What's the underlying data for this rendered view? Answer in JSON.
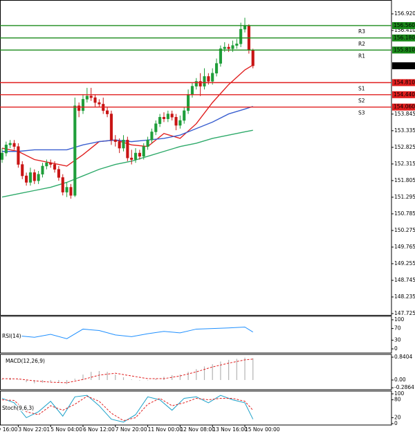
{
  "chart_data": {
    "type": "candlestick",
    "candles": {
      "open": [
        152.45,
        152.65,
        152.9,
        152.95,
        152.85,
        152.3,
        151.95,
        151.75,
        152.05,
        151.8,
        152.0,
        152.25,
        152.35,
        152.3,
        152.15,
        151.9,
        151.45,
        151.6,
        151.35,
        154.1,
        153.95,
        154.3,
        154.4,
        154.35,
        154.2,
        154.15,
        153.95,
        153.85,
        153.05,
        153.0,
        152.8,
        153.05,
        152.5,
        152.45,
        152.65,
        152.55,
        152.85,
        153.05,
        153.3,
        153.55,
        153.75,
        153.7,
        153.85,
        153.75,
        153.5,
        153.65,
        153.95,
        154.45,
        154.7,
        154.85,
        154.7,
        155.0,
        154.85,
        155.1,
        155.4,
        155.85,
        155.9,
        155.85,
        155.95,
        156.0,
        156.45,
        156.55,
        155.8
      ],
      "high": [
        152.8,
        153.0,
        153.05,
        153.05,
        152.95,
        152.4,
        152.05,
        152.2,
        152.15,
        152.1,
        152.35,
        152.45,
        152.45,
        152.4,
        152.25,
        152.0,
        151.75,
        151.7,
        154.35,
        154.2,
        154.45,
        154.65,
        154.65,
        154.45,
        154.3,
        154.35,
        154.05,
        153.95,
        153.2,
        153.1,
        153.2,
        153.15,
        152.75,
        152.8,
        152.75,
        152.95,
        153.15,
        153.4,
        153.65,
        153.85,
        153.9,
        153.95,
        153.95,
        153.85,
        153.8,
        154.05,
        154.6,
        154.8,
        154.95,
        155.1,
        155.25,
        155.1,
        155.25,
        155.55,
        155.95,
        156.05,
        156.0,
        156.1,
        156.15,
        156.65,
        156.8,
        156.6,
        155.85
      ],
      "low": [
        152.35,
        152.55,
        152.8,
        152.75,
        152.2,
        151.85,
        151.65,
        151.65,
        151.7,
        151.7,
        151.9,
        152.15,
        152.2,
        152.05,
        151.8,
        151.35,
        151.3,
        151.25,
        151.3,
        153.75,
        153.85,
        154.2,
        154.25,
        154.05,
        154.05,
        153.85,
        153.75,
        152.9,
        152.85,
        152.65,
        152.7,
        152.4,
        152.3,
        152.35,
        152.45,
        152.45,
        152.75,
        152.95,
        153.2,
        153.45,
        153.6,
        153.6,
        153.65,
        153.35,
        153.4,
        153.55,
        153.85,
        154.35,
        154.6,
        154.4,
        154.6,
        154.75,
        154.75,
        155.0,
        155.3,
        155.75,
        155.75,
        155.75,
        155.85,
        155.9,
        156.35,
        155.7,
        155.25
      ],
      "close": [
        152.65,
        152.9,
        152.95,
        152.85,
        152.3,
        151.95,
        151.75,
        152.05,
        151.8,
        152.0,
        152.25,
        152.35,
        152.3,
        152.15,
        151.9,
        151.45,
        151.6,
        151.35,
        154.1,
        153.95,
        154.3,
        154.4,
        154.35,
        154.2,
        154.15,
        153.95,
        153.85,
        153.05,
        153.0,
        152.8,
        153.05,
        152.5,
        152.45,
        152.65,
        152.55,
        152.85,
        153.05,
        153.3,
        153.55,
        153.75,
        153.7,
        153.85,
        153.75,
        153.5,
        153.65,
        153.95,
        154.45,
        154.7,
        154.85,
        154.7,
        155.0,
        154.85,
        155.1,
        155.4,
        155.85,
        155.9,
        155.85,
        155.95,
        156.0,
        156.45,
        156.55,
        155.8,
        155.327
      ]
    },
    "up_color": "#1f9e3a",
    "down_color": "#c81414",
    "ylim": [
      147.683,
      157.345
    ],
    "yticks": [
      {
        "value": 156.92,
        "label": "156.920"
      },
      {
        "value": 156.41,
        "label": "156.410"
      },
      153.845,
      153.335,
      152.825,
      152.315,
      151.805,
      151.295,
      150.785,
      150.275,
      149.765,
      149.255,
      148.745,
      148.235,
      147.725
    ],
    "xticks": [
      {
        "value": -4,
        "label": "2 Nov 16:00"
      },
      {
        "value": 4,
        "label": "3 Nov 22:01"
      },
      {
        "value": 12,
        "label": "5 Nov 04:00"
      },
      {
        "value": 20,
        "label": "6 Nov 12:00"
      },
      {
        "value": 28,
        "label": "7 Nov 20:00"
      },
      {
        "value": 36,
        "label": "11 Nov 00:00"
      },
      {
        "value": 44,
        "label": "12 Nov 08:00"
      },
      {
        "value": 52,
        "label": "13 Nov 16:00"
      },
      {
        "value": 60,
        "label": "15 Nov 00:00"
      }
    ],
    "moving_averages": [
      {
        "color": "#e01e1e",
        "x": [
          0,
          4,
          8,
          12,
          16,
          20,
          24,
          28,
          32,
          36,
          40,
          44,
          48,
          52,
          56,
          60,
          62
        ],
        "values": [
          152.8,
          152.7,
          152.45,
          152.35,
          152.25,
          152.6,
          153.0,
          153.05,
          152.9,
          152.85,
          153.25,
          153.1,
          153.55,
          154.2,
          154.75,
          155.2,
          155.35
        ]
      },
      {
        "color": "#3a5fd0",
        "x": [
          0,
          4,
          8,
          12,
          16,
          20,
          24,
          28,
          32,
          36,
          40,
          44,
          48,
          52,
          56,
          60,
          62
        ],
        "values": [
          152.7,
          152.7,
          152.75,
          152.75,
          152.75,
          152.9,
          153.0,
          153.05,
          153.0,
          153.05,
          153.1,
          153.2,
          153.4,
          153.6,
          153.85,
          154.0,
          154.08
        ]
      },
      {
        "color": "#2eaa6a",
        "x": [
          0,
          4,
          8,
          12,
          16,
          20,
          24,
          28,
          32,
          36,
          40,
          44,
          48,
          52,
          56,
          60,
          62
        ],
        "values": [
          151.3,
          151.4,
          151.5,
          151.6,
          151.75,
          151.95,
          152.15,
          152.3,
          152.4,
          152.55,
          152.7,
          152.85,
          152.95,
          153.1,
          153.2,
          153.3,
          153.35
        ]
      }
    ],
    "levels": [
      {
        "name": "R3",
        "value": 156.56,
        "value_label": "156.560",
        "color": "#1a8a1a"
      },
      {
        "name": "R2",
        "value": 156.18,
        "value_label": "156.180",
        "color": "#1a8a1a"
      },
      {
        "name": "R1",
        "value": 155.81,
        "value_label": "155.810",
        "color": "#1a8a1a"
      },
      {
        "name": "S1",
        "value": 154.81,
        "value_label": "154.810",
        "color": "#e01e1e"
      },
      {
        "name": "S2",
        "value": 154.44,
        "value_label": "154.440",
        "color": "#e01e1e"
      },
      {
        "name": "S3",
        "value": 154.06,
        "value_label": "154.060",
        "color": "#e01e1e"
      }
    ],
    "last_price": {
      "value": 155.327,
      "label": "155.327"
    },
    "indicators": [
      {
        "title": "RSI(14)",
        "ylim": [
          0,
          100
        ],
        "yticks": [
          100,
          70,
          30,
          0
        ],
        "series": [
          {
            "style": "line",
            "color": "#1e8fff",
            "x": [
              0,
              4,
              8,
              12,
              16,
              20,
              24,
              28,
              32,
              36,
              40,
              44,
              48,
              52,
              56,
              60,
              62
            ],
            "values": [
              55,
              45,
              40,
              50,
              35,
              68,
              63,
              48,
              42,
              52,
              60,
              55,
              68,
              70,
              72,
              75,
              58
            ]
          }
        ]
      },
      {
        "title": "MACD(12,26,9)",
        "ylim": [
          -0.331,
          0.891
        ],
        "yticks": [
          0.8404,
          {
            "value": 0,
            "label": "0.00"
          },
          -0.2864
        ],
        "series": [
          {
            "style": "histogram",
            "color": "#b4b4b4",
            "x": [
              0,
              2,
              4,
              6,
              8,
              10,
              12,
              14,
              16,
              18,
              20,
              22,
              24,
              26,
              28,
              30,
              32,
              34,
              36,
              38,
              40,
              42,
              44,
              46,
              48,
              50,
              52,
              54,
              56,
              58,
              60,
              62
            ],
            "values": [
              0.05,
              0.08,
              0.02,
              -0.08,
              -0.12,
              -0.1,
              -0.08,
              -0.1,
              -0.15,
              0.05,
              0.2,
              0.3,
              0.33,
              0.3,
              0.2,
              0.1,
              0.02,
              -0.02,
              0,
              0.05,
              0.12,
              0.18,
              0.2,
              0.3,
              0.4,
              0.5,
              0.58,
              0.68,
              0.74,
              0.78,
              0.82,
              0.8
            ]
          },
          {
            "style": "dashed",
            "color": "#e01e1e",
            "x": [
              0,
              4,
              8,
              12,
              16,
              20,
              24,
              28,
              32,
              36,
              40,
              44,
              48,
              52,
              56,
              60,
              62
            ],
            "values": [
              0.05,
              0.04,
              -0.03,
              -0.08,
              -0.1,
              0.02,
              0.18,
              0.25,
              0.15,
              0.05,
              0.05,
              0.15,
              0.3,
              0.48,
              0.62,
              0.74,
              0.77
            ]
          }
        ]
      },
      {
        "title": "Stoch(9,6,3)",
        "ylim": [
          0,
          100
        ],
        "yticks": [
          100,
          80,
          20,
          0
        ],
        "series": [
          {
            "style": "line",
            "color": "#1aa0c8",
            "x": [
              0,
              3,
              6,
              9,
              12,
              15,
              18,
              21,
              24,
              27,
              30,
              33,
              36,
              39,
              42,
              45,
              48,
              51,
              54,
              57,
              60,
              62
            ],
            "values": [
              85,
              70,
              20,
              40,
              75,
              25,
              90,
              95,
              60,
              15,
              5,
              30,
              90,
              80,
              45,
              85,
              90,
              70,
              95,
              80,
              70,
              15
            ]
          },
          {
            "style": "dashed",
            "color": "#e01e1e",
            "x": [
              0,
              3,
              6,
              9,
              12,
              15,
              18,
              21,
              24,
              27,
              30,
              33,
              36,
              39,
              42,
              45,
              48,
              51,
              54,
              57,
              60,
              62
            ],
            "values": [
              80,
              78,
              40,
              30,
              60,
              45,
              65,
              92,
              75,
              35,
              10,
              20,
              65,
              85,
              60,
              70,
              85,
              80,
              85,
              85,
              75,
              45
            ]
          }
        ]
      }
    ]
  }
}
